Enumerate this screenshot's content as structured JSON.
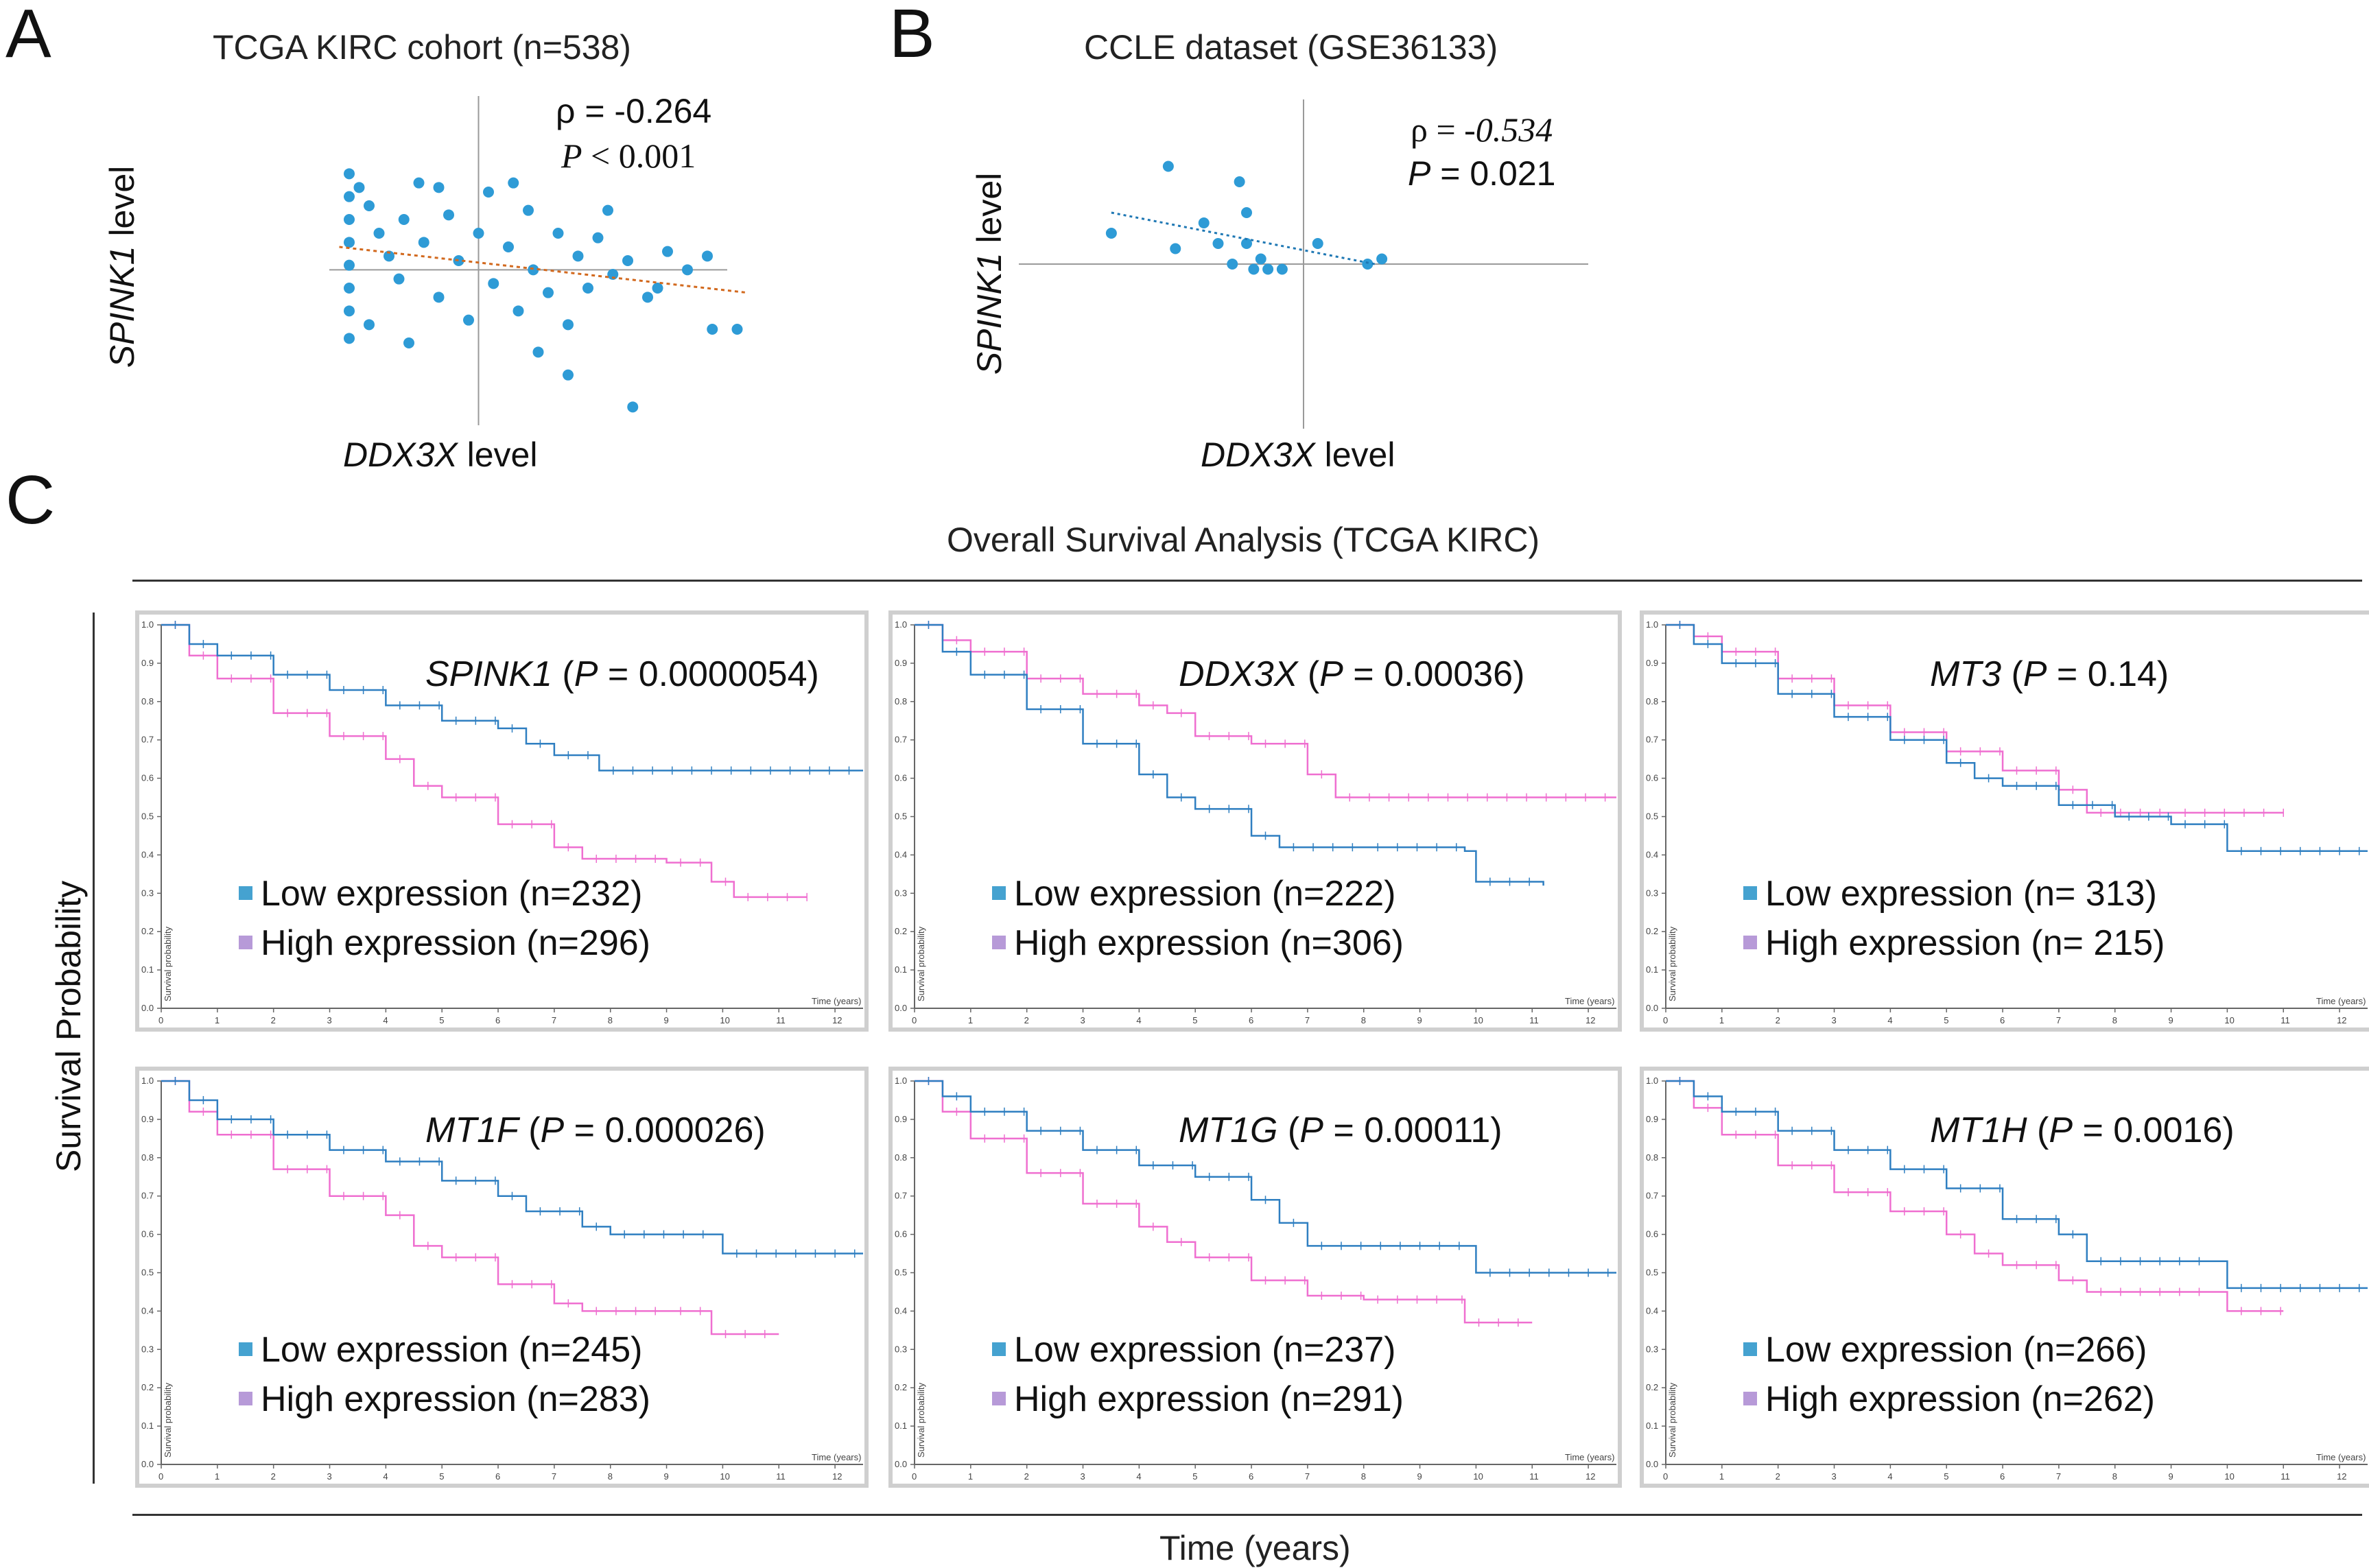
{
  "panel_labels": {
    "a": "A",
    "b": "B",
    "c": "C"
  },
  "colors": {
    "scatter": "#2e9bd6",
    "trend_a": "#d2691e",
    "trend_b": "#1f78b4",
    "low": "#2f7fc1",
    "high": "#ef6fd0",
    "low_sw": "#45a2d0",
    "high_sw": "#b79ad8",
    "axis": "#9a9a9a"
  },
  "chart_data": [
    {
      "type": "scatter",
      "panel": "A",
      "title": "TCGA KIRC cohort (n=538)",
      "xlabel_gene": "DDX3X",
      "xlabel_suffix": " level",
      "ylabel_gene": "SPINK1",
      "ylabel_suffix": " level",
      "rho_text": "ρ = -0.264",
      "p_sym": "P",
      "p_rest": " < 0.001",
      "xlim": [
        -1.5,
        2.5
      ],
      "ylim": [
        -1.7,
        1.9
      ],
      "trend": {
        "x0": -1.4,
        "y0": 0.25,
        "x1": 2.7,
        "y1": -0.25
      },
      "points": [
        [
          -1.3,
          1.05
        ],
        [
          -1.3,
          0.8
        ],
        [
          -1.3,
          0.55
        ],
        [
          -1.3,
          0.3
        ],
        [
          -1.3,
          0.05
        ],
        [
          -1.3,
          -0.2
        ],
        [
          -1.3,
          -0.45
        ],
        [
          -1.3,
          -0.75
        ],
        [
          -1.2,
          0.9
        ],
        [
          -1.1,
          0.7
        ],
        [
          -1.0,
          0.4
        ],
        [
          -0.9,
          0.15
        ],
        [
          -0.8,
          -0.1
        ],
        [
          -0.75,
          0.55
        ],
        [
          -0.6,
          0.95
        ],
        [
          -0.55,
          0.3
        ],
        [
          -0.4,
          -0.3
        ],
        [
          -0.3,
          0.6
        ],
        [
          -0.2,
          0.1
        ],
        [
          -0.1,
          -0.55
        ],
        [
          0.0,
          0.4
        ],
        [
          0.1,
          0.85
        ],
        [
          0.15,
          -0.15
        ],
        [
          0.3,
          0.25
        ],
        [
          0.4,
          -0.45
        ],
        [
          0.5,
          0.65
        ],
        [
          0.55,
          0.0
        ],
        [
          0.7,
          -0.25
        ],
        [
          0.8,
          0.4
        ],
        [
          0.9,
          -0.6
        ],
        [
          1.0,
          0.15
        ],
        [
          1.1,
          -0.2
        ],
        [
          1.2,
          0.35
        ],
        [
          1.35,
          -0.05
        ],
        [
          1.5,
          0.1
        ],
        [
          1.7,
          -0.3
        ],
        [
          1.9,
          0.2
        ],
        [
          2.1,
          0.0
        ],
        [
          2.3,
          0.15
        ],
        [
          2.35,
          -0.65
        ],
        [
          2.6,
          -0.65
        ],
        [
          -1.1,
          -0.6
        ],
        [
          -0.7,
          -0.8
        ],
        [
          -0.4,
          0.9
        ],
        [
          0.35,
          0.95
        ],
        [
          0.6,
          -0.9
        ],
        [
          0.9,
          -1.15
        ],
        [
          1.55,
          -1.5
        ],
        [
          1.3,
          0.65
        ],
        [
          1.8,
          -0.2
        ]
      ]
    },
    {
      "type": "scatter",
      "panel": "B",
      "title": "CCLE dataset (GSE36133)",
      "xlabel_gene": "DDX3X",
      "xlabel_suffix": " level",
      "ylabel_gene": "SPINK1",
      "ylabel_suffix": " level",
      "rho_sym": "ρ = ",
      "rho_val": "-0.534",
      "p_sym": "P",
      "p_rest": " = 0.021",
      "xlim": [
        -2.0,
        2.0
      ],
      "ylim": [
        -1.6,
        1.6
      ],
      "trend": {
        "x0": -1.35,
        "y0": 0.5,
        "x1": 0.5,
        "y1": 0.0
      },
      "points": [
        [
          -1.35,
          0.3
        ],
        [
          -0.95,
          0.95
        ],
        [
          -0.9,
          0.15
        ],
        [
          -0.7,
          0.4
        ],
        [
          -0.6,
          0.2
        ],
        [
          -0.45,
          0.8
        ],
        [
          -0.4,
          0.5
        ],
        [
          -0.5,
          0.0
        ],
        [
          -0.4,
          0.2
        ],
        [
          -0.35,
          -0.05
        ],
        [
          -0.3,
          0.05
        ],
        [
          -0.25,
          -0.05
        ],
        [
          -0.15,
          -0.05
        ],
        [
          0.1,
          0.2
        ],
        [
          0.45,
          0.0
        ],
        [
          0.55,
          0.05
        ]
      ]
    },
    {
      "type": "line",
      "panel": "C",
      "title": "Overall Survival Analysis (TCGA KIRC)",
      "ylabel": "Survival Probability",
      "xlabel": "Time (years)",
      "subplot_ylabel": "Survival probability",
      "subplot_xlabel": "Time (years)",
      "xlim": [
        0,
        12.5
      ],
      "ylim": [
        0,
        1
      ],
      "x_ticks": [
        "0",
        "1",
        "2",
        "3",
        "4",
        "5",
        "6",
        "7",
        "8",
        "9",
        "10",
        "11",
        "12"
      ],
      "y_ticks": [
        "0.0",
        "0.1",
        "0.2",
        "0.3",
        "0.4",
        "0.5",
        "0.6",
        "0.7",
        "0.8",
        "0.9",
        "1.0"
      ],
      "plots": [
        {
          "gene": "SPINK1",
          "p_sym": "P",
          "p_rest": " = 0.0000054)",
          "low_label": "Low expression (n=232)",
          "high_label": "High expression (n=296)",
          "low": [
            [
              0,
              1.0
            ],
            [
              0.5,
              0.95
            ],
            [
              1,
              0.92
            ],
            [
              2,
              0.87
            ],
            [
              3,
              0.83
            ],
            [
              4,
              0.79
            ],
            [
              5,
              0.75
            ],
            [
              6,
              0.73
            ],
            [
              6.5,
              0.69
            ],
            [
              7,
              0.66
            ],
            [
              7.8,
              0.62
            ],
            [
              12.5,
              0.62
            ]
          ],
          "high": [
            [
              0,
              1.0
            ],
            [
              0.5,
              0.92
            ],
            [
              1,
              0.86
            ],
            [
              2,
              0.77
            ],
            [
              3,
              0.71
            ],
            [
              4,
              0.65
            ],
            [
              4.5,
              0.58
            ],
            [
              5,
              0.55
            ],
            [
              6,
              0.48
            ],
            [
              7,
              0.42
            ],
            [
              7.5,
              0.39
            ],
            [
              9,
              0.38
            ],
            [
              9.8,
              0.33
            ],
            [
              10.2,
              0.29
            ],
            [
              11.5,
              0.29
            ]
          ]
        },
        {
          "gene": "DDX3X",
          "p_sym": "P",
          "p_rest": " = 0.00036)",
          "low_label": "Low expression (n=222)",
          "high_label": "High expression (n=306)",
          "low": [
            [
              0,
              1.0
            ],
            [
              0.5,
              0.93
            ],
            [
              1,
              0.87
            ],
            [
              2,
              0.78
            ],
            [
              3,
              0.69
            ],
            [
              4,
              0.61
            ],
            [
              4.5,
              0.55
            ],
            [
              5,
              0.52
            ],
            [
              6,
              0.45
            ],
            [
              6.5,
              0.42
            ],
            [
              8,
              0.42
            ],
            [
              9.8,
              0.41
            ],
            [
              10,
              0.33
            ],
            [
              11.2,
              0.32
            ]
          ],
          "high": [
            [
              0,
              1.0
            ],
            [
              0.5,
              0.96
            ],
            [
              1,
              0.93
            ],
            [
              2,
              0.86
            ],
            [
              3,
              0.82
            ],
            [
              4,
              0.79
            ],
            [
              4.5,
              0.77
            ],
            [
              5,
              0.71
            ],
            [
              6,
              0.69
            ],
            [
              7,
              0.61
            ],
            [
              7.5,
              0.55
            ],
            [
              12.5,
              0.55
            ]
          ]
        },
        {
          "gene": "MT3",
          "p_sym": "P",
          "p_rest": " = 0.14)",
          "low_label": "Low expression (n= 313)",
          "high_label": "High expression (n= 215)",
          "low": [
            [
              0,
              1.0
            ],
            [
              0.5,
              0.95
            ],
            [
              1,
              0.9
            ],
            [
              2,
              0.82
            ],
            [
              3,
              0.76
            ],
            [
              4,
              0.7
            ],
            [
              5,
              0.64
            ],
            [
              5.5,
              0.6
            ],
            [
              6,
              0.58
            ],
            [
              7,
              0.53
            ],
            [
              8,
              0.5
            ],
            [
              9,
              0.48
            ],
            [
              10,
              0.41
            ],
            [
              12.5,
              0.41
            ]
          ],
          "high": [
            [
              0,
              1.0
            ],
            [
              0.5,
              0.97
            ],
            [
              1,
              0.93
            ],
            [
              2,
              0.86
            ],
            [
              3,
              0.79
            ],
            [
              4,
              0.72
            ],
            [
              5,
              0.67
            ],
            [
              6,
              0.62
            ],
            [
              7,
              0.57
            ],
            [
              7.5,
              0.51
            ],
            [
              9,
              0.51
            ],
            [
              11,
              0.51
            ]
          ]
        },
        {
          "gene": "MT1F",
          "p_sym": "P",
          "p_rest": " = 0.000026)",
          "low_label": "Low expression (n=245)",
          "high_label": "High expression (n=283)",
          "low": [
            [
              0,
              1.0
            ],
            [
              0.5,
              0.95
            ],
            [
              1,
              0.9
            ],
            [
              2,
              0.86
            ],
            [
              3,
              0.82
            ],
            [
              4,
              0.79
            ],
            [
              5,
              0.74
            ],
            [
              6,
              0.7
            ],
            [
              6.5,
              0.66
            ],
            [
              7.5,
              0.62
            ],
            [
              8,
              0.6
            ],
            [
              9.8,
              0.6
            ],
            [
              10,
              0.55
            ],
            [
              12.5,
              0.55
            ]
          ],
          "high": [
            [
              0,
              1.0
            ],
            [
              0.5,
              0.92
            ],
            [
              1,
              0.86
            ],
            [
              2,
              0.77
            ],
            [
              3,
              0.7
            ],
            [
              4,
              0.65
            ],
            [
              4.5,
              0.57
            ],
            [
              5,
              0.54
            ],
            [
              6,
              0.47
            ],
            [
              7,
              0.42
            ],
            [
              7.5,
              0.4
            ],
            [
              9,
              0.4
            ],
            [
              9.8,
              0.34
            ],
            [
              11,
              0.34
            ]
          ]
        },
        {
          "gene": "MT1G",
          "p_sym": "P",
          "p_rest": " = 0.00011)",
          "low_label": "Low expression (n=237)",
          "high_label": "High expression (n=291)",
          "low": [
            [
              0,
              1.0
            ],
            [
              0.5,
              0.96
            ],
            [
              1,
              0.92
            ],
            [
              2,
              0.87
            ],
            [
              3,
              0.82
            ],
            [
              4,
              0.78
            ],
            [
              5,
              0.75
            ],
            [
              6,
              0.69
            ],
            [
              6.5,
              0.63
            ],
            [
              7,
              0.57
            ],
            [
              9.8,
              0.57
            ],
            [
              10,
              0.5
            ],
            [
              12.5,
              0.5
            ]
          ],
          "high": [
            [
              0,
              1.0
            ],
            [
              0.5,
              0.92
            ],
            [
              1,
              0.85
            ],
            [
              2,
              0.76
            ],
            [
              3,
              0.68
            ],
            [
              4,
              0.62
            ],
            [
              4.5,
              0.58
            ],
            [
              5,
              0.54
            ],
            [
              6,
              0.48
            ],
            [
              7,
              0.44
            ],
            [
              8,
              0.43
            ],
            [
              9.5,
              0.43
            ],
            [
              9.8,
              0.37
            ],
            [
              11,
              0.37
            ]
          ]
        },
        {
          "gene": "MT1H",
          "p_sym": "P",
          "p_rest": " = 0.0016)",
          "low_label": "Low expression (n=266)",
          "high_label": "High expression (n=262)",
          "low": [
            [
              0,
              1.0
            ],
            [
              0.5,
              0.96
            ],
            [
              1,
              0.92
            ],
            [
              2,
              0.87
            ],
            [
              3,
              0.82
            ],
            [
              4,
              0.77
            ],
            [
              5,
              0.72
            ],
            [
              6,
              0.64
            ],
            [
              7,
              0.6
            ],
            [
              7.5,
              0.53
            ],
            [
              9.8,
              0.53
            ],
            [
              10,
              0.46
            ],
            [
              12.5,
              0.46
            ]
          ],
          "high": [
            [
              0,
              1.0
            ],
            [
              0.5,
              0.93
            ],
            [
              1,
              0.86
            ],
            [
              2,
              0.78
            ],
            [
              3,
              0.71
            ],
            [
              4,
              0.66
            ],
            [
              5,
              0.6
            ],
            [
              5.5,
              0.55
            ],
            [
              6,
              0.52
            ],
            [
              7,
              0.48
            ],
            [
              7.5,
              0.45
            ],
            [
              9.8,
              0.45
            ],
            [
              10,
              0.4
            ],
            [
              11,
              0.4
            ]
          ]
        }
      ]
    }
  ]
}
